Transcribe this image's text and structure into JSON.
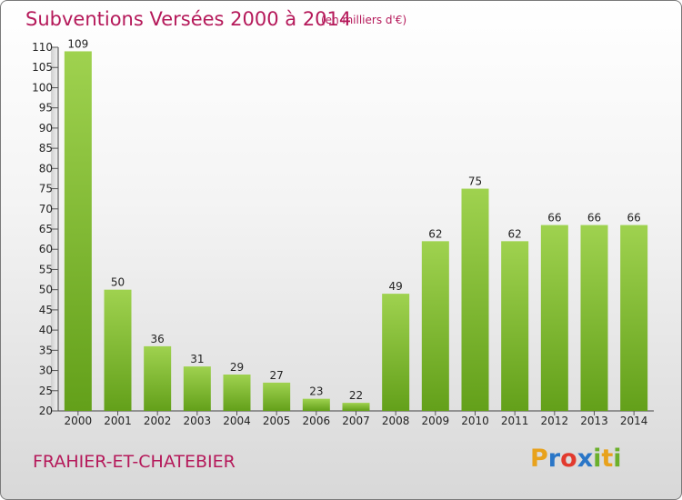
{
  "title": "Subventions Versées 2000 à 2014",
  "unit_note": "(en milliers d'€)",
  "commune": "FRAHIER-ET-CHATEBIER",
  "logo": {
    "letters": [
      "P",
      "r",
      "o",
      "x",
      "i",
      "t",
      "i"
    ],
    "colors": [
      "#e8a21c",
      "#2a76c7",
      "#e23a2e",
      "#2a76c7",
      "#6bb02b",
      "#e8a21c",
      "#6bb02b"
    ]
  },
  "colors": {
    "bar_light": "#9fd24f",
    "bar_dark": "#63a01a",
    "text_accent": "#b5195a"
  },
  "chart_data": {
    "type": "bar",
    "categories": [
      "2000",
      "2001",
      "2002",
      "2003",
      "2004",
      "2005",
      "2006",
      "2007",
      "2008",
      "2009",
      "2010",
      "2011",
      "2012",
      "2013",
      "2014"
    ],
    "values": [
      109,
      50,
      36,
      31,
      29,
      27,
      23,
      22,
      49,
      62,
      75,
      62,
      66,
      66,
      66
    ],
    "ylim": [
      20,
      110
    ],
    "yticks": [
      20,
      25,
      30,
      35,
      40,
      45,
      50,
      55,
      60,
      65,
      70,
      75,
      80,
      85,
      90,
      95,
      100,
      105,
      110
    ],
    "grid": false,
    "data_labels": true
  }
}
